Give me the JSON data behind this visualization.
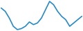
{
  "values": [
    82.0,
    81.0,
    79.0,
    76.5,
    75.5,
    75.8,
    76.5,
    77.8,
    77.0,
    77.5,
    79.0,
    81.5,
    84.0,
    83.0,
    81.0,
    79.5,
    78.5,
    76.5,
    77.5,
    78.5,
    79.5
  ],
  "line_color": "#2589C8",
  "background_color": "#ffffff",
  "linewidth": 1.2
}
